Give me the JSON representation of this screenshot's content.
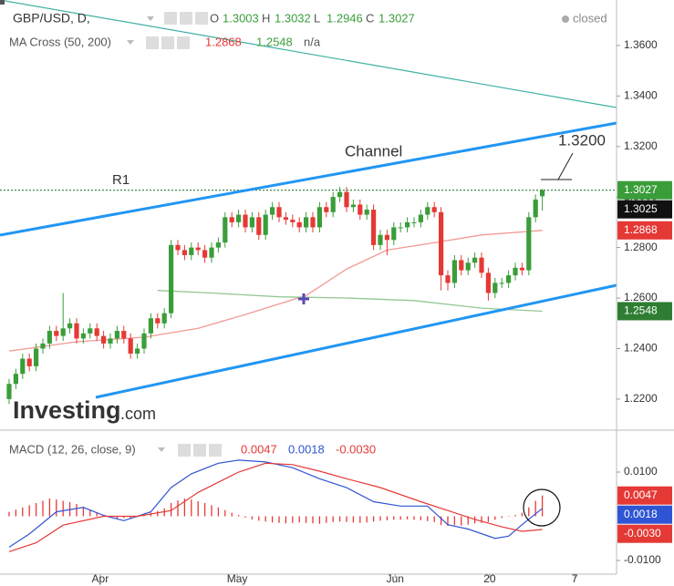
{
  "chart_data": [
    {
      "type": "candlestick",
      "title": "GBP/USD, D,",
      "status": "closed",
      "ohlc_keys": [
        "O",
        "H",
        "L",
        "C"
      ],
      "indicator": "MA Cross (50, 200)",
      "indicator_status": "n/a",
      "annotations": {
        "channel": "Channel",
        "r1": "R1",
        "target": "1.3200"
      },
      "watermark": [
        "Investing",
        ".com"
      ],
      "bid": 1.3025,
      "up_color": "#3a9d3a",
      "down_color": "#e53935",
      "open": [
        1.22,
        1.226,
        1.23,
        1.236,
        1.233,
        1.24,
        1.242,
        1.247,
        1.245,
        1.248,
        1.25,
        1.244,
        1.246,
        1.248,
        1.245,
        1.242,
        1.244,
        1.247,
        1.244,
        1.238,
        1.24,
        1.246,
        1.252,
        1.25,
        1.254,
        1.281,
        1.279,
        1.277,
        1.28,
        1.279,
        1.276,
        1.28,
        1.282,
        1.292,
        1.29,
        1.293,
        1.288,
        1.292,
        1.285,
        1.293,
        1.296,
        1.292,
        1.291,
        1.29,
        1.288,
        1.292,
        1.288,
        1.296,
        1.294,
        1.3,
        1.302,
        1.296,
        1.297,
        1.293,
        1.295,
        1.281,
        1.285,
        1.283,
        1.288,
        1.288,
        1.29,
        1.29,
        1.293,
        1.296,
        1.294,
        1.269,
        1.266,
        1.275,
        1.271,
        1.274,
        1.276,
        1.27,
        1.262,
        1.266,
        1.266,
        1.269,
        1.272,
        1.271,
        1.292,
        1.3003
      ],
      "high": [
        1.228,
        1.232,
        1.238,
        1.238,
        1.242,
        1.244,
        1.249,
        1.249,
        1.262,
        1.252,
        1.252,
        1.248,
        1.25,
        1.25,
        1.247,
        1.246,
        1.249,
        1.249,
        1.246,
        1.242,
        1.248,
        1.254,
        1.254,
        1.256,
        1.283,
        1.283,
        1.281,
        1.282,
        1.282,
        1.281,
        1.282,
        1.284,
        1.294,
        1.294,
        1.295,
        1.295,
        1.294,
        1.294,
        1.295,
        1.298,
        1.298,
        1.294,
        1.293,
        1.292,
        1.294,
        1.294,
        1.298,
        1.298,
        1.302,
        1.304,
        1.304,
        1.299,
        1.299,
        1.297,
        1.297,
        1.287,
        1.287,
        1.29,
        1.29,
        1.292,
        1.292,
        1.295,
        1.298,
        1.298,
        1.296,
        1.271,
        1.277,
        1.277,
        1.276,
        1.278,
        1.278,
        1.272,
        1.268,
        1.268,
        1.271,
        1.274,
        1.274,
        1.294,
        1.301,
        1.3032
      ],
      "low": [
        1.218,
        1.224,
        1.228,
        1.231,
        1.231,
        1.238,
        1.24,
        1.243,
        1.243,
        1.246,
        1.242,
        1.242,
        1.244,
        1.243,
        1.24,
        1.24,
        1.242,
        1.242,
        1.236,
        1.236,
        1.238,
        1.244,
        1.248,
        1.248,
        1.252,
        1.277,
        1.275,
        1.275,
        1.277,
        1.274,
        1.274,
        1.278,
        1.28,
        1.288,
        1.288,
        1.286,
        1.286,
        1.283,
        1.283,
        1.291,
        1.29,
        1.289,
        1.288,
        1.286,
        1.286,
        1.286,
        1.286,
        1.292,
        1.292,
        1.298,
        1.294,
        1.294,
        1.291,
        1.291,
        1.279,
        1.279,
        1.277,
        1.281,
        1.286,
        1.286,
        1.288,
        1.288,
        1.291,
        1.292,
        1.263,
        1.263,
        1.264,
        1.269,
        1.269,
        1.272,
        1.268,
        1.259,
        1.26,
        1.264,
        1.264,
        1.267,
        1.269,
        1.269,
        1.29,
        1.2946
      ],
      "close": [
        1.226,
        1.23,
        1.236,
        1.233,
        1.24,
        1.242,
        1.247,
        1.245,
        1.248,
        1.25,
        1.244,
        1.246,
        1.248,
        1.245,
        1.242,
        1.244,
        1.247,
        1.244,
        1.238,
        1.24,
        1.246,
        1.252,
        1.25,
        1.254,
        1.281,
        1.279,
        1.277,
        1.28,
        1.279,
        1.276,
        1.28,
        1.282,
        1.292,
        1.29,
        1.293,
        1.288,
        1.292,
        1.285,
        1.293,
        1.296,
        1.292,
        1.291,
        1.29,
        1.288,
        1.292,
        1.288,
        1.296,
        1.294,
        1.3,
        1.302,
        1.296,
        1.297,
        1.293,
        1.295,
        1.281,
        1.285,
        1.283,
        1.288,
        1.288,
        1.29,
        1.29,
        1.293,
        1.296,
        1.294,
        1.269,
        1.266,
        1.275,
        1.271,
        1.274,
        1.276,
        1.27,
        1.262,
        1.266,
        1.266,
        1.269,
        1.272,
        1.271,
        1.292,
        1.299,
        1.3027
      ],
      "series": [
        {
          "color": "#f29a94",
          "x": [
            0,
            10,
            20,
            28,
            35,
            44,
            50,
            56,
            62,
            70,
            79
          ],
          "values": [
            1.239,
            1.2427,
            1.2445,
            1.248,
            1.2535,
            1.261,
            1.2715,
            1.279,
            1.2815,
            1.285,
            1.2868
          ]
        },
        {
          "color": "#93c793",
          "x": [
            22,
            30,
            40,
            50,
            60,
            70,
            79
          ],
          "values": [
            1.263,
            1.262,
            1.2605,
            1.26,
            1.259,
            1.256,
            1.2548
          ]
        }
      ],
      "xlim": [
        -1.35,
        90
      ],
      "ylim": [
        1.2077,
        1.378
      ],
      "yticks": [
        {
          "value": 1.22,
          "label": "1.2200"
        },
        {
          "value": 1.24,
          "label": "1.2400"
        },
        {
          "value": 1.26,
          "label": "1.2600"
        },
        {
          "value": 1.28,
          "label": "1.2800"
        },
        {
          "value": 1.3,
          "label": "1.3000"
        },
        {
          "value": 1.32,
          "label": "1.3200"
        },
        {
          "value": 1.34,
          "label": "1.3400"
        },
        {
          "value": 1.36,
          "label": "1.3600"
        }
      ]
    },
    {
      "type": "macd",
      "title": "MACD (12, 26, close, 9)",
      "readout": [
        {
          "value": 0.0047,
          "color": "#e53935"
        },
        {
          "value": 0.0018,
          "color": "#2f55d4"
        },
        {
          "value": -0.003,
          "label": "-0.0030",
          "color": "#e53935"
        }
      ],
      "histogram": {
        "color": "#e53935",
        "values": [
          0.001,
          0.0015,
          0.002,
          0.0025,
          0.003,
          0.0035,
          0.004,
          0.0038,
          0.0035,
          0.0032,
          0.0028,
          0.0022,
          0.0015,
          0.0008,
          0.0002,
          -0.0003,
          -0.0005,
          -0.0004,
          -0.0006,
          -0.0002,
          0.0004,
          0.0008,
          0.0012,
          0.0018,
          0.003,
          0.0036,
          0.004,
          0.0038,
          0.0034,
          0.003,
          0.0025,
          0.002,
          0.0014,
          0.0008,
          0.0003,
          -0.0003,
          -0.0007,
          -0.001,
          -0.0012,
          -0.0014,
          -0.0015,
          -0.0016,
          -0.0015,
          -0.0014,
          -0.0015,
          -0.0016,
          -0.0017,
          -0.0015,
          -0.0013,
          -0.0012,
          -0.0013,
          -0.0014,
          -0.0015,
          -0.0014,
          -0.0012,
          -0.001,
          -0.0009,
          -0.0008,
          -0.0008,
          -0.0007,
          -0.0008,
          -0.0009,
          -0.0011,
          -0.0013,
          -0.002,
          -0.0022,
          -0.002,
          -0.0021,
          -0.0019,
          -0.0016,
          -0.0015,
          -0.0013,
          -0.0008,
          -0.0004,
          -0.0001,
          0.0003,
          0.0008,
          0.002,
          0.0035,
          0.0047
        ]
      },
      "series": [
        {
          "color": "#2f55d4",
          "x": [
            0,
            3,
            7,
            11,
            14,
            17,
            21,
            24,
            27,
            31,
            34,
            38,
            42,
            46,
            50,
            54,
            58,
            62,
            65,
            68,
            72,
            74,
            76,
            79
          ],
          "values": [
            -0.007,
            -0.004,
            0.001,
            0.002,
            0.0002,
            -0.001,
            0.001,
            0.0065,
            0.0096,
            0.012,
            0.0127,
            0.0123,
            0.011,
            0.0085,
            0.0065,
            0.0033,
            0.0023,
            0.0023,
            -0.0019,
            -0.0029,
            -0.005,
            -0.0045,
            -0.0019,
            0.0018
          ]
        },
        {
          "color": "#e53935",
          "x": [
            0,
            4,
            8,
            14,
            19,
            24,
            28,
            34,
            38,
            42,
            46,
            50,
            55,
            61,
            65,
            69,
            73,
            76,
            79
          ],
          "values": [
            -0.008,
            -0.006,
            -0.002,
            0,
            0,
            0.0013,
            0.0054,
            0.01,
            0.012,
            0.0117,
            0.0102,
            0.0085,
            0.0065,
            0.0033,
            0.0013,
            -0.0007,
            -0.0024,
            -0.0034,
            -0.003
          ]
        }
      ],
      "xlim": [
        -1.35,
        90
      ],
      "ylim": [
        -0.0131,
        0.01784
      ],
      "yticks": [
        {
          "value": 0.01,
          "label": "0.0100"
        },
        {
          "value": -0.01,
          "label": "-0.0100"
        }
      ],
      "xticks": [
        {
          "value": 13.5,
          "label": "Apr"
        },
        {
          "value": 33.8,
          "label": "May"
        },
        {
          "value": 57.2,
          "label": "Jun"
        },
        {
          "value": 71.2,
          "label": "20"
        },
        {
          "value": 83.8,
          "label": "7"
        }
      ]
    }
  ]
}
